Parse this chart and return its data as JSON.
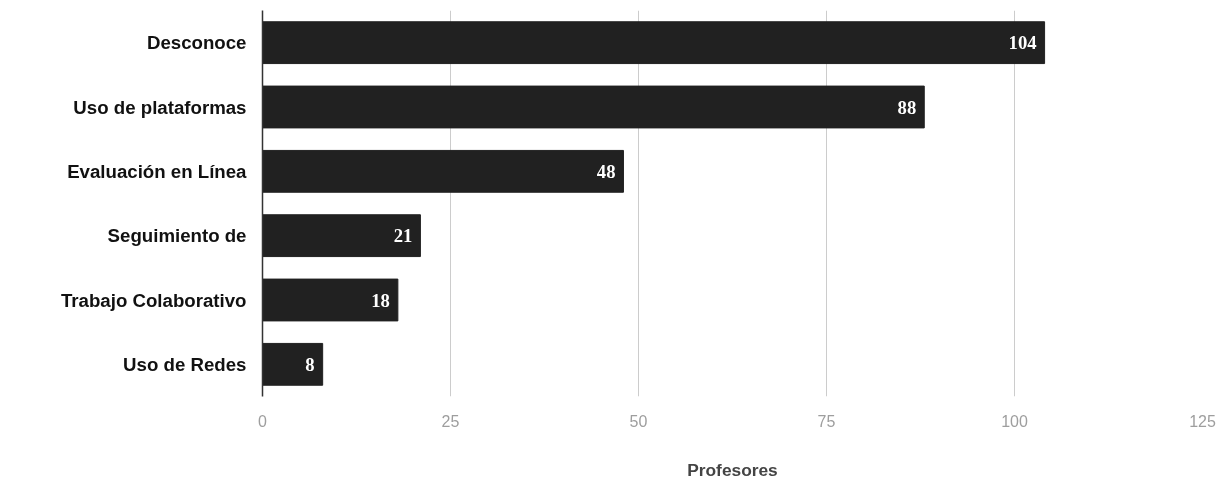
{
  "chart_data": {
    "type": "bar",
    "orientation": "horizontal",
    "categories": [
      "Desconoce",
      "Uso de plataformas",
      "Evaluación en Línea",
      "Seguimiento de",
      "Trabajo Colaborativo",
      "Uso de Redes"
    ],
    "values": [
      104,
      88,
      48,
      21,
      18,
      8
    ],
    "color": "#212121",
    "xlabel": "Profesores",
    "xlim": [
      0,
      125
    ],
    "xticks": [
      0,
      25,
      50,
      75,
      100,
      125
    ],
    "grid": "x",
    "data_labels": true
  }
}
